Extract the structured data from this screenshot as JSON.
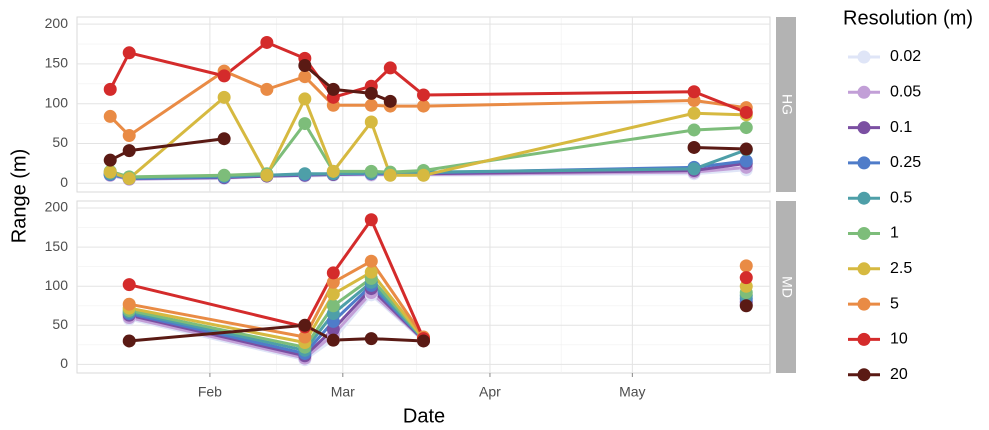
{
  "chart_data": {
    "type": "line",
    "xlabel": "Date",
    "ylabel": "Range (m)",
    "legend_title": "Resolution (m)",
    "xlim": [
      4,
      150
    ],
    "xticks": [
      {
        "value": 32,
        "label": "Feb"
      },
      {
        "value": 60,
        "label": "Mar"
      },
      {
        "value": 91,
        "label": "Apr"
      },
      {
        "value": 121,
        "label": "May"
      }
    ],
    "ylim": [
      -11,
      209
    ],
    "series": [
      {
        "name": "0.02",
        "color": "#dfe5f7"
      },
      {
        "name": "0.05",
        "color": "#c29fd7"
      },
      {
        "name": "0.1",
        "color": "#7b4fa2"
      },
      {
        "name": "0.25",
        "color": "#4f7cc9"
      },
      {
        "name": "0.5",
        "color": "#4e9fa8"
      },
      {
        "name": "1",
        "color": "#7dbd7a"
      },
      {
        "name": "2.5",
        "color": "#d6b940"
      },
      {
        "name": "5",
        "color": "#e98b45"
      },
      {
        "name": "10",
        "color": "#d42b2b"
      },
      {
        "name": "20",
        "color": "#5a1a14"
      }
    ],
    "facets": [
      {
        "label": "HG",
        "yticks": [
          0,
          50,
          100,
          150,
          200
        ],
        "series": [
          {
            "x": [
              11,
              15,
              35,
              44,
              52,
              58,
              66,
              70,
              77,
              134,
              145
            ],
            "values": [
              10,
              5,
              6,
              9,
              9,
              10,
              10,
              10,
              10,
              12,
              17
            ]
          },
          {
            "x": [
              11,
              15,
              35,
              44,
              52,
              58,
              66,
              70,
              77,
              134,
              145
            ],
            "values": [
              10,
              5,
              7,
              9,
              10,
              11,
              11,
              11,
              11,
              14,
              20
            ]
          },
          {
            "x": [
              11,
              15,
              35,
              44,
              52,
              58,
              66,
              70,
              77,
              134,
              145
            ],
            "values": [
              11,
              6,
              7,
              9,
              10,
              11,
              12,
              12,
              12,
              16,
              25
            ]
          },
          {
            "x": [
              11,
              15,
              35,
              44,
              52,
              58,
              66,
              70,
              77,
              134,
              145
            ],
            "values": [
              11,
              6,
              8,
              10,
              11,
              12,
              12,
              12,
              13,
              20,
              28
            ]
          },
          {
            "x": [
              11,
              15,
              35,
              44,
              52,
              58,
              66,
              70,
              77,
              134,
              145
            ],
            "values": [
              12,
              7,
              9,
              10,
              12,
              12,
              13,
              13,
              14,
              18,
              42
            ]
          },
          {
            "x": [
              11,
              15,
              35,
              44,
              52,
              58,
              66,
              70,
              77,
              134,
              145
            ],
            "values": [
              15,
              8,
              10,
              12,
              75,
              15,
              15,
              14,
              16,
              67,
              70
            ]
          },
          {
            "x": [
              11,
              15,
              35,
              44,
              52,
              58,
              66,
              70,
              77,
              134,
              145
            ],
            "values": [
              14,
              6,
              108,
              10,
              106,
              15,
              77,
              10,
              10,
              88,
              86
            ]
          },
          {
            "x": [
              11,
              15,
              35,
              44,
              52,
              58,
              66,
              70,
              77,
              134,
              145
            ],
            "values": [
              84,
              60,
              141,
              118,
              134,
              98,
              98,
              97,
              97,
              104,
              95
            ]
          },
          {
            "x": [
              11,
              15,
              35,
              44,
              52,
              58,
              66,
              70,
              77,
              134,
              145
            ],
            "values": [
              118,
              164,
              135,
              177,
              157,
              108,
              122,
              145,
              111,
              115,
              89
            ]
          },
          {
            "x": [
              11,
              15,
              35,
              null,
              52,
              58,
              66,
              70,
              null,
              134,
              145
            ],
            "values": [
              29,
              41,
              56,
              null,
              148,
              118,
              113,
              103,
              null,
              45,
              43
            ]
          }
        ]
      },
      {
        "label": "MD",
        "yticks": [
          0,
          50,
          100,
          150,
          200
        ],
        "series": [
          {
            "x": [
              15,
              52,
              58,
              66,
              77,
              null,
              145
            ],
            "values": [
              58,
              6,
              32,
              89,
              30,
              null,
              75
            ]
          },
          {
            "x": [
              15,
              52,
              58,
              66,
              77,
              null,
              145
            ],
            "values": [
              60,
              8,
              38,
              92,
              31,
              null,
              77
            ]
          },
          {
            "x": [
              15,
              52,
              58,
              66,
              77,
              null,
              145
            ],
            "values": [
              63,
              11,
              45,
              97,
              31,
              null,
              80
            ]
          },
          {
            "x": [
              15,
              52,
              58,
              66,
              77,
              null,
              145
            ],
            "values": [
              65,
              14,
              55,
              101,
              32,
              null,
              84
            ]
          },
          {
            "x": [
              15,
              52,
              58,
              66,
              77,
              null,
              145
            ],
            "values": [
              67,
              18,
              65,
              105,
              32,
              null,
              88
            ]
          },
          {
            "x": [
              15,
              52,
              58,
              66,
              77,
              null,
              145
            ],
            "values": [
              69,
              22,
              75,
              110,
              33,
              null,
              92
            ]
          },
          {
            "x": [
              15,
              52,
              58,
              66,
              77,
              null,
              145
            ],
            "values": [
              72,
              28,
              90,
              118,
              33,
              null,
              100
            ]
          },
          {
            "x": [
              15,
              52,
              58,
              66,
              77,
              null,
              145
            ],
            "values": [
              77,
              35,
              105,
              132,
              35,
              null,
              126
            ]
          },
          {
            "x": [
              15,
              52,
              58,
              66,
              77,
              null,
              145
            ],
            "values": [
              102,
              48,
              117,
              185,
              33,
              null,
              111
            ]
          },
          {
            "x": [
              15,
              52,
              58,
              66,
              77,
              null,
              145
            ],
            "values": [
              30,
              50,
              31,
              33,
              30,
              null,
              75
            ]
          }
        ]
      }
    ]
  }
}
